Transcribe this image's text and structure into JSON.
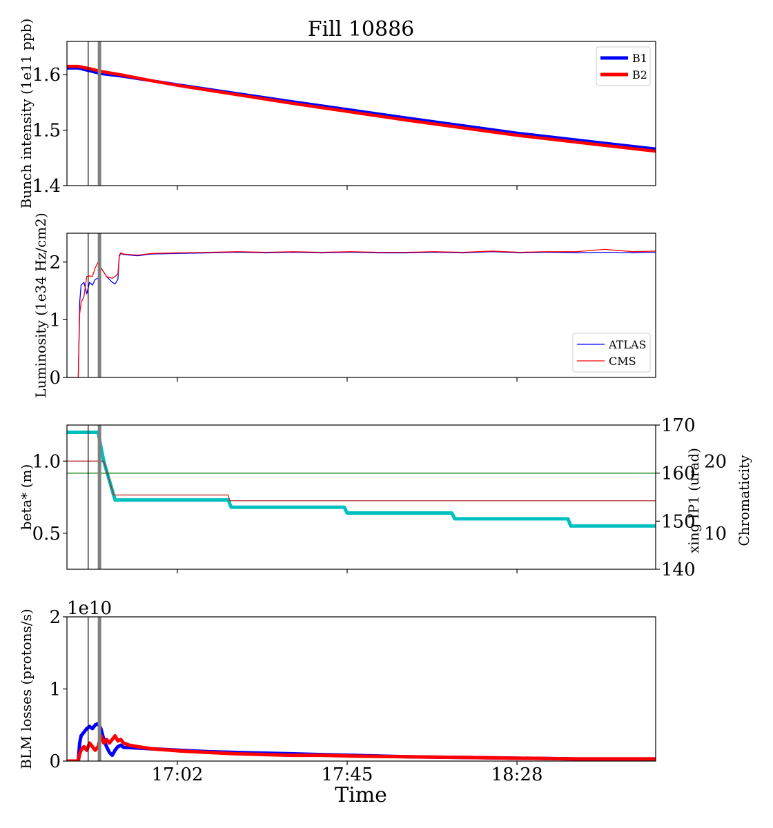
{
  "title": "Fill 10886",
  "colors": {
    "b1": "#0000ff",
    "b2": "#ff0000",
    "beta": "#00bfbf",
    "xing": "#008000",
    "chroma": "#b22222",
    "marker_thin": "#000000",
    "marker_thick": "#808080"
  },
  "chart_data": [
    {
      "id": "intensity",
      "type": "line",
      "ylabel": "Bunch intensity (1e11 ppb)",
      "ylim": [
        1.4,
        1.66
      ],
      "yticks": [
        1.4,
        1.5,
        1.6
      ],
      "ytick_labels": [
        "1.4",
        "1.5",
        "1.6"
      ],
      "x_range_min": [
        0,
        208
      ],
      "legend_position": "top-right",
      "series": [
        {
          "name": "B1",
          "color": "#0000ff",
          "x": [
            0,
            4,
            8,
            12,
            20,
            30,
            40,
            60,
            80,
            120,
            160,
            208
          ],
          "y": [
            1.612,
            1.612,
            1.607,
            1.602,
            1.597,
            1.589,
            1.581,
            1.566,
            1.551,
            1.522,
            1.494,
            1.466
          ]
        },
        {
          "name": "B2",
          "color": "#ff0000",
          "x": [
            0,
            4,
            8,
            12,
            20,
            30,
            40,
            60,
            80,
            120,
            160,
            208
          ],
          "y": [
            1.615,
            1.615,
            1.611,
            1.606,
            1.599,
            1.589,
            1.58,
            1.564,
            1.548,
            1.518,
            1.49,
            1.462
          ]
        }
      ]
    },
    {
      "id": "luminosity",
      "type": "line",
      "ylabel": "Luminosity (1e34 Hz/cm2)",
      "ylim": [
        0,
        2.5
      ],
      "yticks": [
        0,
        1,
        2
      ],
      "ytick_labels": [
        "0",
        "1",
        "2"
      ],
      "x_range_min": [
        0,
        208
      ],
      "legend_position": "lower-right",
      "series": [
        {
          "name": "ATLAS",
          "color": "#0000ff",
          "x": [
            0,
            4,
            4.5,
            5,
            6,
            7,
            8,
            9,
            10,
            11,
            12,
            14,
            16,
            17,
            18,
            18.5,
            19,
            20,
            25,
            30,
            40,
            50,
            60,
            70,
            80,
            90,
            100,
            110,
            120,
            130,
            140,
            150,
            160,
            170,
            180,
            190,
            200,
            208
          ],
          "y": [
            0,
            0,
            1.3,
            1.6,
            1.65,
            1.45,
            1.65,
            1.6,
            1.7,
            1.72,
            1.9,
            1.75,
            1.65,
            1.62,
            1.7,
            2.1,
            2.15,
            2.13,
            2.11,
            2.14,
            2.15,
            2.16,
            2.17,
            2.16,
            2.17,
            2.16,
            2.17,
            2.16,
            2.16,
            2.17,
            2.16,
            2.18,
            2.16,
            2.17,
            2.16,
            2.17,
            2.16,
            2.17
          ]
        },
        {
          "name": "CMS",
          "color": "#ff0000",
          "x": [
            0,
            4,
            4.5,
            5,
            6,
            7,
            8,
            9,
            10,
            11,
            12,
            14,
            16,
            17,
            18,
            18.5,
            19,
            20,
            25,
            30,
            40,
            50,
            60,
            70,
            80,
            90,
            100,
            110,
            120,
            130,
            140,
            150,
            160,
            170,
            180,
            190,
            200,
            208
          ],
          "y": [
            0,
            0,
            1.1,
            1.3,
            1.4,
            1.75,
            1.76,
            1.75,
            1.9,
            2.0,
            1.9,
            1.75,
            1.72,
            1.75,
            1.8,
            2.12,
            2.16,
            2.14,
            2.12,
            2.15,
            2.16,
            2.17,
            2.18,
            2.17,
            2.18,
            2.17,
            2.18,
            2.17,
            2.17,
            2.18,
            2.17,
            2.19,
            2.17,
            2.18,
            2.18,
            2.22,
            2.18,
            2.19
          ]
        }
      ]
    },
    {
      "id": "optics",
      "type": "line",
      "ylabel": "beta* (m)",
      "ylabel_right": "xing IP1 (urad)",
      "ylabel_right2": "Chromaticity",
      "ylim": [
        0.25,
        1.25
      ],
      "yticks": [
        0.5,
        1.0
      ],
      "ytick_labels": [
        "0.5",
        "1.0"
      ],
      "ylim_right": [
        140,
        170
      ],
      "yticks_right": [
        140,
        150,
        160,
        170
      ],
      "ytick_labels_right": [
        "140",
        "150",
        "160",
        "170"
      ],
      "ylim_right2": [
        5,
        25
      ],
      "yticks_right2": [
        10,
        20
      ],
      "ytick_labels_right2": [
        "10",
        "20"
      ],
      "x_range_min": [
        0,
        208
      ],
      "series": [
        {
          "name": "beta*",
          "axis": "left",
          "color": "#00bfbf",
          "x": [
            0,
            11,
            13,
            17,
            57,
            58,
            98,
            99,
            136,
            137,
            177,
            178,
            208
          ],
          "y": [
            1.2,
            1.2,
            1.0,
            0.73,
            0.73,
            0.68,
            0.68,
            0.64,
            0.64,
            0.6,
            0.6,
            0.55,
            0.55
          ]
        },
        {
          "name": "xing IP1",
          "axis": "right",
          "color": "#008000",
          "x": [
            0,
            208
          ],
          "y": [
            160,
            160
          ]
        },
        {
          "name": "Chromaticity",
          "axis": "right2",
          "color": "#b22222",
          "x": [
            0,
            13,
            16.5,
            57,
            57.5,
            208
          ],
          "y": [
            20,
            20,
            15.3,
            15.3,
            14.5,
            14.5
          ]
        }
      ]
    },
    {
      "id": "losses",
      "type": "line",
      "ylabel": "BLM losses (protons/s)",
      "offset_text": "1e10",
      "ylim": [
        0,
        2
      ],
      "yticks": [
        0,
        1,
        2
      ],
      "ytick_labels": [
        "0",
        "1",
        "2"
      ],
      "x_range_min": [
        0,
        208
      ],
      "xtick_values": [
        39,
        99,
        159
      ],
      "xtick_labels": [
        "17:02",
        "17:45",
        "18:28"
      ],
      "xlabel": "Time",
      "series": [
        {
          "name": "B1",
          "color": "#0000ff",
          "x": [
            0,
            4,
            4.5,
            5,
            6,
            7,
            8,
            9,
            10,
            11,
            12,
            13,
            14,
            15,
            16,
            17,
            18,
            19,
            20,
            25,
            30,
            40,
            50,
            60,
            70,
            80,
            90,
            100,
            120,
            140,
            160,
            180,
            200,
            208
          ],
          "y": [
            0,
            0,
            0.25,
            0.35,
            0.4,
            0.45,
            0.48,
            0.45,
            0.5,
            0.52,
            0.45,
            0.3,
            0.2,
            0.12,
            0.08,
            0.15,
            0.2,
            0.22,
            0.19,
            0.18,
            0.17,
            0.15,
            0.13,
            0.12,
            0.11,
            0.1,
            0.09,
            0.08,
            0.06,
            0.05,
            0.04,
            0.03,
            0.03,
            0.03
          ]
        },
        {
          "name": "B2",
          "color": "#ff0000",
          "x": [
            0,
            4,
            4.5,
            5,
            6,
            7,
            8,
            9,
            10,
            11,
            12,
            13,
            14,
            15,
            16,
            17,
            18,
            19,
            20,
            22,
            25,
            30,
            40,
            50,
            60,
            70,
            80,
            90,
            100,
            120,
            140,
            160,
            180,
            200,
            208
          ],
          "y": [
            0,
            0,
            0.1,
            0.15,
            0.2,
            0.15,
            0.25,
            0.2,
            0.15,
            0.2,
            0.35,
            0.25,
            0.3,
            0.25,
            0.3,
            0.35,
            0.28,
            0.3,
            0.25,
            0.22,
            0.2,
            0.17,
            0.14,
            0.12,
            0.1,
            0.09,
            0.08,
            0.08,
            0.07,
            0.06,
            0.05,
            0.04,
            0.03,
            0.03,
            0.03
          ]
        }
      ]
    }
  ],
  "markers": [
    {
      "name": "marker-thin",
      "x": 7.5
    },
    {
      "name": "marker-thick",
      "x": 11.5
    }
  ]
}
